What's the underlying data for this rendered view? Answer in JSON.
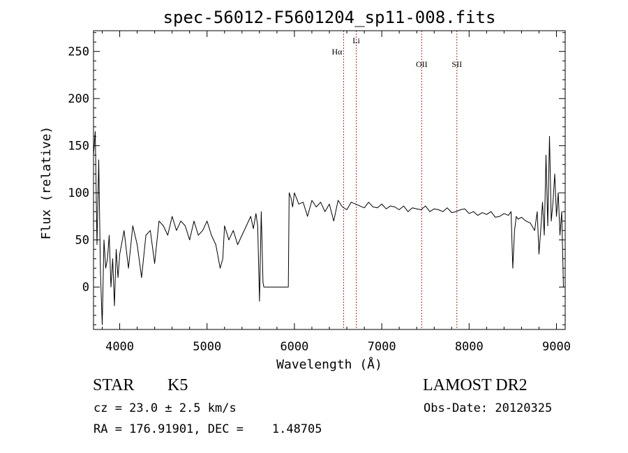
{
  "chart_data": {
    "type": "line",
    "title": "spec-56012-F5601204_sp11-008.fits",
    "xlabel": "Wavelength (Å)",
    "ylabel": "Flux (relative)",
    "xlim": [
      3700,
      9100
    ],
    "ylim": [
      -45,
      272
    ],
    "xticks": [
      "4000",
      "5000",
      "6000",
      "7000",
      "8000",
      "9000"
    ],
    "yticks": [
      "0",
      "50",
      "100",
      "150",
      "200",
      "250"
    ],
    "grid": false,
    "series": [
      {
        "x": [
          3700,
          3720,
          3740,
          3760,
          3780,
          3800,
          3820,
          3840,
          3860,
          3880,
          3900,
          3920,
          3940,
          3960,
          3980,
          4000,
          4050,
          4100,
          4150,
          4200,
          4250,
          4300,
          4350,
          4400,
          4450,
          4500,
          4550,
          4600,
          4650,
          4700,
          4750,
          4800,
          4850,
          4900,
          4950,
          5000,
          5050,
          5100,
          5150,
          5180,
          5200,
          5250,
          5300,
          5350,
          5400,
          5450,
          5500,
          5530,
          5560,
          5580,
          5600,
          5620,
          5640,
          5650,
          5700,
          5800,
          5900,
          5930,
          5940,
          5960,
          5980,
          6000,
          6050,
          6100,
          6150,
          6200,
          6250,
          6300,
          6350,
          6400,
          6450,
          6500,
          6550,
          6600,
          6650,
          6700,
          6750,
          6800,
          6850,
          6900,
          6950,
          7000,
          7050,
          7100,
          7150,
          7200,
          7250,
          7300,
          7350,
          7400,
          7450,
          7500,
          7550,
          7600,
          7650,
          7700,
          7750,
          7800,
          7850,
          7900,
          7950,
          8000,
          8050,
          8100,
          8150,
          8200,
          8250,
          8300,
          8350,
          8400,
          8450,
          8480,
          8500,
          8520,
          8540,
          8560,
          8600,
          8650,
          8700,
          8750,
          8780,
          8800,
          8820,
          8840,
          8860,
          8880,
          8900,
          8920,
          8940,
          8960,
          8980,
          9000,
          9020,
          9040,
          9060,
          9080
        ],
        "y": [
          140,
          165,
          45,
          135,
          15,
          -40,
          50,
          20,
          30,
          55,
          0,
          30,
          -20,
          40,
          10,
          35,
          60,
          20,
          65,
          45,
          10,
          55,
          60,
          25,
          70,
          65,
          55,
          75,
          60,
          70,
          65,
          50,
          70,
          55,
          60,
          70,
          55,
          45,
          20,
          30,
          65,
          50,
          60,
          45,
          55,
          65,
          75,
          62,
          78,
          65,
          -15,
          80,
          5,
          0,
          0,
          0,
          0,
          0,
          100,
          95,
          85,
          100,
          88,
          90,
          75,
          92,
          85,
          90,
          80,
          88,
          70,
          92,
          85,
          82,
          90,
          88,
          86,
          84,
          90,
          85,
          84,
          88,
          83,
          86,
          85,
          82,
          86,
          80,
          84,
          83,
          82,
          86,
          80,
          83,
          82,
          80,
          84,
          79,
          80,
          82,
          83,
          78,
          80,
          76,
          79,
          77,
          80,
          74,
          75,
          78,
          76,
          80,
          20,
          60,
          75,
          72,
          74,
          70,
          68,
          60,
          80,
          35,
          60,
          90,
          55,
          140,
          65,
          160,
          70,
          90,
          120,
          75,
          100,
          55,
          80,
          0
        ]
      }
    ],
    "annotations": [
      {
        "label": "Hα",
        "x": 6563
      },
      {
        "label": "Li",
        "x": 6708
      },
      {
        "label": "OII",
        "x": 7457
      },
      {
        "label": "SII",
        "x": 7860
      }
    ]
  },
  "info": {
    "object_class": "STAR",
    "subclass": "K5",
    "survey": "LAMOST DR2",
    "redshift": "cz = 23.0 ± 2.5 km/s",
    "obs_date": "Obs-Date: 20120325",
    "coords": "RA = 176.91901, DEC =    1.48705"
  },
  "colors": {
    "spectrum": "#000000",
    "line_markers": "#b22222",
    "axes": "#000000"
  }
}
